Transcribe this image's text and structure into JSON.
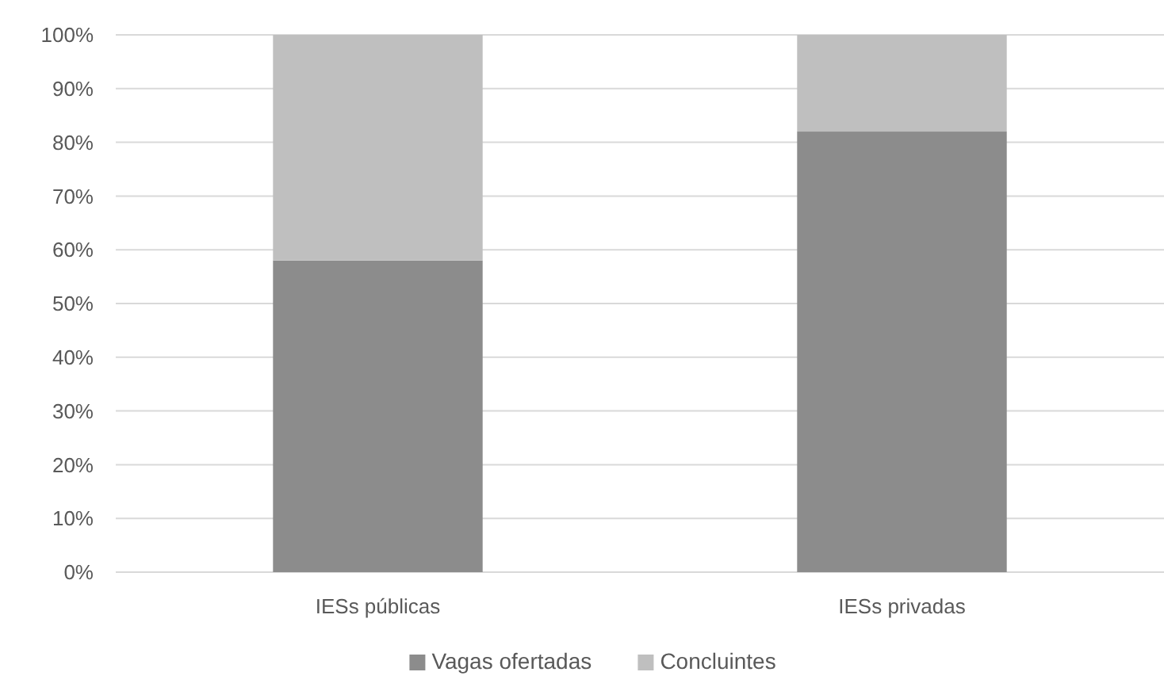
{
  "chart_data": {
    "type": "bar",
    "stacked": true,
    "categories": [
      "IESs públicas",
      "IESs privadas"
    ],
    "series": [
      {
        "name": "Vagas ofertadas",
        "color": "#8c8c8c",
        "values": [
          58,
          82
        ]
      },
      {
        "name": "Concluintes",
        "color": "#bfbfbf",
        "values": [
          42,
          18
        ]
      }
    ],
    "ylim": [
      0,
      100
    ],
    "yticks": [
      {
        "value": 0,
        "label": "0%"
      },
      {
        "value": 10,
        "label": "10%"
      },
      {
        "value": 20,
        "label": "20%"
      },
      {
        "value": 30,
        "label": "30%"
      },
      {
        "value": 40,
        "label": "40%"
      },
      {
        "value": 50,
        "label": "50%"
      },
      {
        "value": 60,
        "label": "60%"
      },
      {
        "value": 70,
        "label": "70%"
      },
      {
        "value": 80,
        "label": "80%"
      },
      {
        "value": 90,
        "label": "90%"
      },
      {
        "value": 100,
        "label": "100%"
      }
    ],
    "grid": "y",
    "legend": "bottom"
  }
}
